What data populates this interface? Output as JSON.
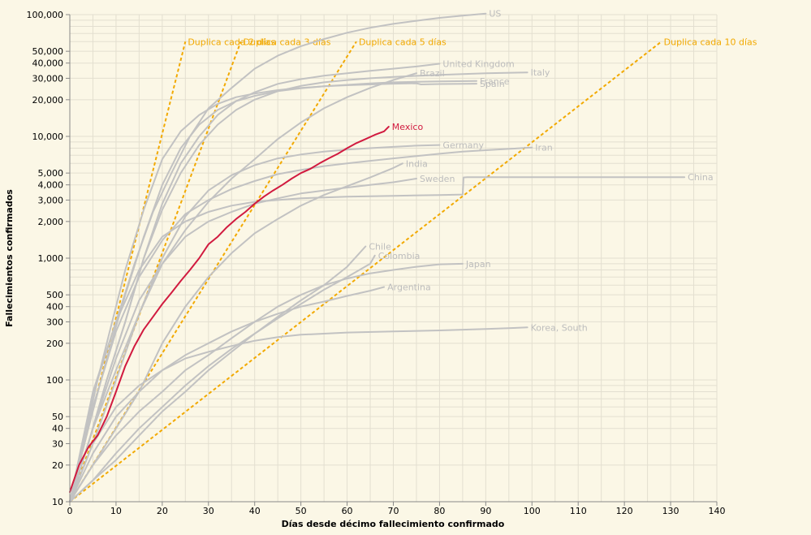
{
  "chart_data": {
    "type": "line",
    "xlabel": "Días desde décimo fallecimiento confirmado",
    "ylabel": "Fallecimientos confirmados",
    "xlim": [
      0,
      140
    ],
    "ylim": [
      10,
      100000
    ],
    "y_scale": "log",
    "grid": true,
    "x_ticks": [
      "0",
      "10",
      "20",
      "30",
      "40",
      "50",
      "60",
      "70",
      "80",
      "90",
      "100",
      "110",
      "120",
      "130",
      "140"
    ],
    "y_tick_labels": [
      {
        "value": 10,
        "label": "10"
      },
      {
        "value": 20,
        "label": "20"
      },
      {
        "value": 30,
        "label": "30"
      },
      {
        "value": 40,
        "label": "40"
      },
      {
        "value": 50,
        "label": "50"
      },
      {
        "value": 100,
        "label": "100"
      },
      {
        "value": 200,
        "label": "200"
      },
      {
        "value": 300,
        "label": "300"
      },
      {
        "value": 400,
        "label": "400"
      },
      {
        "value": 500,
        "label": "500"
      },
      {
        "value": 1000,
        "label": "1,000"
      },
      {
        "value": 2000,
        "label": "2,000"
      },
      {
        "value": 3000,
        "label": "3,000"
      },
      {
        "value": 4000,
        "label": "4,000"
      },
      {
        "value": 5000,
        "label": "5,000"
      },
      {
        "value": 10000,
        "label": "10,000"
      },
      {
        "value": 20000,
        "label": "20,000"
      },
      {
        "value": 30000,
        "label": "30,000"
      },
      {
        "value": 40000,
        "label": "40,000"
      },
      {
        "value": 50000,
        "label": "50,000"
      },
      {
        "value": 100000,
        "label": "100,000"
      }
    ],
    "colors": {
      "highlight": "#d11a3f",
      "other": "#c2c2c2",
      "reference": "#f2a900",
      "label_other": "#bdbdbd",
      "grid": "#e3dfd0",
      "background": "#fbf7e6"
    },
    "highlight_series": "Mexico",
    "series": [
      {
        "name": "US",
        "x": [
          0,
          3,
          6,
          10,
          14,
          18,
          22,
          26,
          30,
          35,
          40,
          45,
          50,
          55,
          60,
          65,
          70,
          75,
          80,
          85,
          90
        ],
        "y": [
          10,
          30,
          100,
          300,
          900,
          2400,
          5000,
          10000,
          17000,
          25000,
          36000,
          46000,
          55000,
          63000,
          71000,
          78000,
          84000,
          89000,
          94000,
          98000,
          102000
        ]
      },
      {
        "name": "United Kingdom",
        "x": [
          0,
          4,
          8,
          12,
          16,
          20,
          24,
          28,
          32,
          36,
          40,
          45,
          50,
          55,
          60,
          65,
          70,
          75,
          80
        ],
        "y": [
          10,
          30,
          100,
          300,
          1000,
          2800,
          6000,
          10000,
          15000,
          19500,
          23000,
          27000,
          29500,
          31500,
          33000,
          34500,
          36000,
          37500,
          39500
        ]
      },
      {
        "name": "Italy",
        "x": [
          0,
          4,
          8,
          12,
          16,
          20,
          24,
          28,
          32,
          36,
          40,
          45,
          50,
          55,
          60,
          65,
          70,
          80,
          90,
          99
        ],
        "y": [
          10,
          30,
          100,
          300,
          1000,
          2500,
          5000,
          8500,
          12500,
          16500,
          20000,
          23500,
          26000,
          27800,
          29000,
          30000,
          30800,
          32000,
          33000,
          33500
        ]
      },
      {
        "name": "Brazil",
        "x": [
          0,
          5,
          10,
          15,
          20,
          25,
          30,
          35,
          40,
          45,
          50,
          55,
          60,
          65,
          70,
          75
        ],
        "y": [
          10,
          40,
          120,
          350,
          900,
          1700,
          2900,
          4500,
          6500,
          9500,
          13000,
          17000,
          21000,
          25000,
          29000,
          33000
        ]
      },
      {
        "name": "France",
        "x": [
          0,
          4,
          8,
          12,
          16,
          20,
          24,
          28,
          32,
          36,
          40,
          45,
          50,
          55,
          60,
          65,
          70,
          80,
          88
        ],
        "y": [
          10,
          40,
          150,
          500,
          1500,
          4000,
          8000,
          12500,
          16500,
          19500,
          21500,
          23500,
          24800,
          25800,
          26500,
          27200,
          27800,
          28300,
          28500
        ]
      },
      {
        "name": "Spain",
        "x": [
          0,
          4,
          8,
          12,
          16,
          20,
          24,
          28,
          32,
          36,
          40,
          45,
          50,
          55,
          60,
          65,
          70,
          75,
          76,
          80,
          88
        ],
        "y": [
          10,
          50,
          200,
          800,
          2500,
          6500,
          11000,
          15000,
          18500,
          21000,
          22500,
          24000,
          25000,
          25800,
          26300,
          26700,
          27100,
          27300,
          26700,
          26900,
          27100
        ]
      },
      {
        "name": "Germany",
        "x": [
          0,
          5,
          10,
          15,
          20,
          25,
          30,
          35,
          40,
          45,
          50,
          55,
          60,
          65,
          70,
          75,
          80
        ],
        "y": [
          10,
          30,
          100,
          350,
          1000,
          2200,
          3600,
          4800,
          5800,
          6600,
          7100,
          7500,
          7800,
          8000,
          8200,
          8400,
          8500
        ]
      },
      {
        "name": "Iran",
        "x": [
          0,
          5,
          10,
          15,
          20,
          25,
          30,
          35,
          40,
          45,
          50,
          55,
          60,
          65,
          70,
          75,
          80,
          85,
          90,
          95,
          100
        ],
        "y": [
          10,
          60,
          250,
          700,
          1400,
          2300,
          3000,
          3700,
          4300,
          4900,
          5300,
          5700,
          6000,
          6300,
          6600,
          6900,
          7200,
          7500,
          7700,
          7900,
          8100
        ]
      },
      {
        "name": "India",
        "x": [
          0,
          5,
          10,
          15,
          20,
          25,
          30,
          35,
          40,
          45,
          50,
          55,
          60,
          65,
          70,
          72
        ],
        "y": [
          10,
          20,
          40,
          80,
          200,
          400,
          700,
          1100,
          1600,
          2100,
          2700,
          3300,
          3900,
          4600,
          5500,
          6000
        ]
      },
      {
        "name": "Sweden",
        "x": [
          0,
          5,
          10,
          15,
          20,
          25,
          30,
          35,
          40,
          45,
          50,
          55,
          60,
          65,
          70,
          75
        ],
        "y": [
          10,
          40,
          150,
          450,
          900,
          1500,
          2000,
          2400,
          2800,
          3100,
          3400,
          3600,
          3800,
          4000,
          4200,
          4500
        ]
      },
      {
        "name": "China",
        "x": [
          0,
          5,
          10,
          15,
          20,
          25,
          30,
          35,
          40,
          45,
          50,
          60,
          70,
          80,
          85,
          85.2,
          86,
          100,
          110,
          120,
          133
        ],
        "y": [
          10,
          80,
          300,
          800,
          1500,
          2000,
          2400,
          2700,
          2900,
          3000,
          3100,
          3200,
          3250,
          3300,
          3330,
          4600,
          4630,
          4630,
          4630,
          4630,
          4630
        ]
      },
      {
        "name": "Mexico",
        "x": [
          0,
          2,
          4,
          6,
          8,
          10,
          12,
          14,
          16,
          18,
          20,
          22,
          24,
          26,
          28,
          30,
          32,
          34,
          36,
          38,
          40,
          42,
          44,
          46,
          48,
          50,
          52,
          54,
          56,
          58,
          60,
          62,
          64,
          66,
          68,
          69
        ],
        "y": [
          12,
          20,
          28,
          35,
          50,
          80,
          130,
          190,
          260,
          330,
          420,
          520,
          650,
          800,
          1000,
          1300,
          1500,
          1800,
          2100,
          2400,
          2800,
          3200,
          3600,
          4000,
          4500,
          5000,
          5400,
          6000,
          6600,
          7200,
          8000,
          8800,
          9500,
          10300,
          11000,
          12000
        ]
      },
      {
        "name": "Chile",
        "x": [
          0,
          5,
          10,
          15,
          20,
          25,
          30,
          35,
          40,
          45,
          50,
          55,
          60,
          64
        ],
        "y": [
          10,
          15,
          22,
          35,
          55,
          80,
          120,
          170,
          240,
          330,
          450,
          600,
          850,
          1250
        ]
      },
      {
        "name": "Colombia",
        "x": [
          0,
          5,
          10,
          15,
          20,
          25,
          30,
          35,
          40,
          45,
          50,
          55,
          60,
          65,
          66
        ],
        "y": [
          10,
          15,
          25,
          40,
          60,
          90,
          130,
          180,
          240,
          320,
          420,
          550,
          700,
          900,
          1050
        ]
      },
      {
        "name": "Japan",
        "x": [
          0,
          5,
          10,
          15,
          20,
          25,
          30,
          35,
          40,
          45,
          50,
          55,
          60,
          65,
          70,
          75,
          80,
          85
        ],
        "y": [
          10,
          20,
          35,
          55,
          80,
          120,
          160,
          220,
          300,
          400,
          500,
          600,
          680,
          750,
          800,
          850,
          890,
          900
        ]
      },
      {
        "name": "Argentina",
        "x": [
          0,
          5,
          10,
          15,
          20,
          25,
          30,
          35,
          40,
          45,
          50,
          55,
          60,
          65,
          68
        ],
        "y": [
          10,
          25,
          50,
          80,
          120,
          160,
          200,
          250,
          300,
          350,
          400,
          440,
          490,
          540,
          580
        ]
      },
      {
        "name": "Korea, South",
        "x": [
          0,
          5,
          10,
          15,
          20,
          25,
          30,
          35,
          40,
          45,
          50,
          55,
          60,
          70,
          80,
          90,
          99
        ],
        "y": [
          10,
          30,
          60,
          90,
          120,
          150,
          170,
          190,
          210,
          225,
          235,
          240,
          245,
          250,
          255,
          262,
          270
        ]
      }
    ],
    "reference_lines": [
      {
        "label": "Duplica cada 2 días",
        "x": [
          0,
          25
        ],
        "y": [
          10,
          60000
        ]
      },
      {
        "label": "Duplica cada 3 días",
        "x": [
          0,
          37
        ],
        "y": [
          10,
          60000
        ]
      },
      {
        "label": "Duplica cada 5 días",
        "x": [
          0,
          62
        ],
        "y": [
          10,
          60000
        ]
      },
      {
        "label": "Duplica cada 10 días",
        "x": [
          0,
          128
        ],
        "y": [
          10,
          60000
        ]
      }
    ]
  }
}
